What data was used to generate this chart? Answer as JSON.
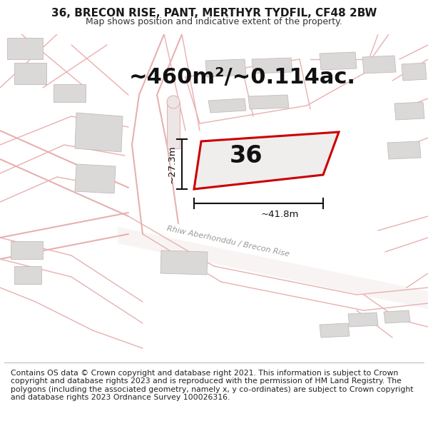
{
  "title": "36, BRECON RISE, PANT, MERTHYR TYDFIL, CF48 2BW",
  "subtitle": "Map shows position and indicative extent of the property.",
  "area_text": "~460m²/~0.114ac.",
  "label_36": "36",
  "dim_width": "~41.8m",
  "dim_height": "~27.3m",
  "footer": "Contains OS data © Crown copyright and database right 2021. This information is subject to Crown copyright and database rights 2023 and is reproduced with the permission of HM Land Registry. The polygons (including the associated geometry, namely x, y co-ordinates) are subject to Crown copyright and database rights 2023 Ordnance Survey 100026316.",
  "bg_color": "#ffffff",
  "map_bg": "#faf8f8",
  "road_color": "#e8b0b0",
  "road_fill": "#f8eeee",
  "plot_outline_color": "#cc0000",
  "plot_fill": "#f0ecec",
  "building_fill": "#dbd8d8",
  "building_outline": "#c4bcbc",
  "street_label": "Rhiw Aberhonddu / Brecon Rise",
  "footer_bg": "#ffffff",
  "title_fontsize": 11,
  "subtitle_fontsize": 9,
  "area_fontsize": 22,
  "label_fontsize": 24,
  "dim_fontsize": 9.5,
  "footer_fontsize": 7.8,
  "street_fontsize": 8
}
